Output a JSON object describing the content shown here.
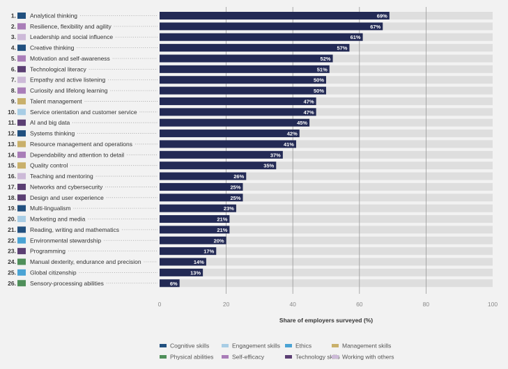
{
  "colors": {
    "Cognitive skills": "#21507f",
    "Engagement skills": "#a8cde5",
    "Ethics": "#4aa3d4",
    "Management skills": "#c9b06b",
    "Physical abilities": "#4f8f5a",
    "Self-efficacy": "#a97db8",
    "Technology skills": "#5b3f73",
    "Working with others": "#cdbad8",
    "bar": "#232a55",
    "track": "#dedede",
    "grid": "#999999",
    "text": "#333333"
  },
  "chart_data": {
    "type": "bar",
    "orientation": "horizontal",
    "xlabel": "Share of employers surveyed (%)",
    "xlim": [
      0,
      100
    ],
    "xticks": [
      0,
      20,
      40,
      60,
      80,
      100
    ],
    "grid": true,
    "legend_position": "bottom",
    "legend": [
      "Cognitive skills",
      "Engagement skills",
      "Ethics",
      "Management skills",
      "Physical abilities",
      "Self-efficacy",
      "Technology skills",
      "Working with others"
    ],
    "items": [
      {
        "rank": "1.",
        "label": "Analytical thinking",
        "value": 69,
        "value_label": "69%",
        "category": "Cognitive skills"
      },
      {
        "rank": "2.",
        "label": "Resilience, flexibility and agility",
        "value": 67,
        "value_label": "67%",
        "category": "Self-efficacy"
      },
      {
        "rank": "3.",
        "label": "Leadership and social influence",
        "value": 61,
        "value_label": "61%",
        "category": "Working with others"
      },
      {
        "rank": "4.",
        "label": "Creative thinking",
        "value": 57,
        "value_label": "57%",
        "category": "Cognitive skills"
      },
      {
        "rank": "5.",
        "label": "Motivation and self-awareness",
        "value": 52,
        "value_label": "52%",
        "category": "Self-efficacy"
      },
      {
        "rank": "6.",
        "label": "Technological literacy",
        "value": 51,
        "value_label": "51%",
        "category": "Technology skills"
      },
      {
        "rank": "7.",
        "label": "Empathy and active listening",
        "value": 50,
        "value_label": "50%",
        "category": "Working with others"
      },
      {
        "rank": "8.",
        "label": "Curiosity and lifelong learning",
        "value": 50,
        "value_label": "50%",
        "category": "Self-efficacy"
      },
      {
        "rank": "9.",
        "label": "Talent management",
        "value": 47,
        "value_label": "47%",
        "category": "Management skills"
      },
      {
        "rank": "10.",
        "label": "Service orientation and customer service",
        "value": 47,
        "value_label": "47%",
        "category": "Engagement skills"
      },
      {
        "rank": "11.",
        "label": "AI and big data",
        "value": 45,
        "value_label": "45%",
        "category": "Technology skills"
      },
      {
        "rank": "12.",
        "label": "Systems thinking",
        "value": 42,
        "value_label": "42%",
        "category": "Cognitive skills"
      },
      {
        "rank": "13.",
        "label": "Resource management and operations",
        "value": 41,
        "value_label": "41%",
        "category": "Management skills"
      },
      {
        "rank": "14.",
        "label": "Dependability and attention to detail",
        "value": 37,
        "value_label": "37%",
        "category": "Self-efficacy"
      },
      {
        "rank": "15.",
        "label": "Quality control",
        "value": 35,
        "value_label": "35%",
        "category": "Management skills"
      },
      {
        "rank": "16.",
        "label": "Teaching and mentoring",
        "value": 26,
        "value_label": "26%",
        "category": "Working with others"
      },
      {
        "rank": "17.",
        "label": "Networks and cybersecurity",
        "value": 25,
        "value_label": "25%",
        "category": "Technology skills"
      },
      {
        "rank": "18.",
        "label": "Design and user experience",
        "value": 25,
        "value_label": "25%",
        "category": "Technology skills"
      },
      {
        "rank": "19.",
        "label": "Multi-lingualism",
        "value": 23,
        "value_label": "23%",
        "category": "Cognitive skills"
      },
      {
        "rank": "20.",
        "label": "Marketing and media",
        "value": 21,
        "value_label": "21%",
        "category": "Engagement skills"
      },
      {
        "rank": "21.",
        "label": "Reading, writing and mathematics",
        "value": 21,
        "value_label": "21%",
        "category": "Cognitive skills"
      },
      {
        "rank": "22.",
        "label": "Environmental stewardship",
        "value": 20,
        "value_label": "20%",
        "category": "Ethics"
      },
      {
        "rank": "23.",
        "label": "Programming",
        "value": 17,
        "value_label": "17%",
        "category": "Technology skills"
      },
      {
        "rank": "24.",
        "label": "Manual dexterity, endurance and precision",
        "value": 14,
        "value_label": "14%",
        "category": "Physical abilities"
      },
      {
        "rank": "25.",
        "label": "Global citizenship",
        "value": 13,
        "value_label": "13%",
        "category": "Ethics"
      },
      {
        "rank": "26.",
        "label": "Sensory-processing abilities",
        "value": 6,
        "value_label": "6%",
        "category": "Physical abilities"
      }
    ]
  }
}
